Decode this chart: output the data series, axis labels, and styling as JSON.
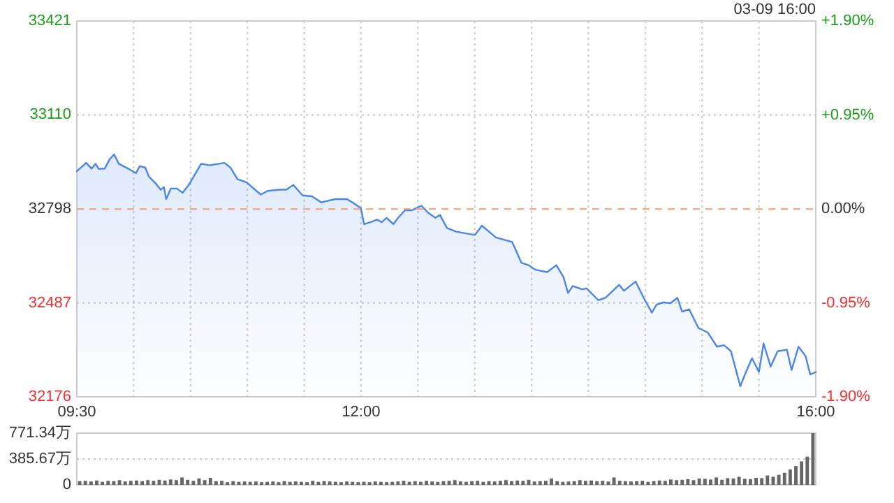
{
  "chart_data": [
    {
      "type": "area",
      "color": "#4a86e8",
      "x": [
        9.5,
        9.582,
        9.631,
        9.664,
        9.692,
        9.746,
        9.787,
        9.828,
        9.869,
        9.951,
        10.02,
        10.053,
        10.102,
        10.135,
        10.196,
        10.237,
        10.266,
        10.286,
        10.327,
        10.381,
        10.43,
        10.483,
        10.594,
        10.667,
        10.798,
        10.852,
        10.913,
        10.995,
        11.056,
        11.118,
        11.179,
        11.282,
        11.343,
        11.404,
        11.486,
        11.568,
        11.65,
        11.773,
        11.876,
        11.937,
        11.998,
        12.027,
        12.08,
        12.142,
        12.183,
        12.224,
        12.285,
        12.326,
        12.387,
        12.449,
        12.531,
        12.592,
        12.654,
        12.695,
        12.756,
        12.838,
        13.002,
        13.063,
        13.186,
        13.329,
        13.411,
        13.473,
        13.534,
        13.637,
        13.718,
        13.78,
        13.821,
        13.862,
        13.944,
        13.985,
        14.087,
        14.149,
        14.271,
        14.312,
        14.415,
        14.497,
        14.558,
        14.599,
        14.661,
        14.722,
        14.783,
        14.824,
        14.886,
        14.968,
        15.05,
        15.131,
        15.193,
        15.254,
        15.336,
        15.377,
        15.439,
        15.5,
        15.541,
        15.603,
        15.664,
        15.746,
        15.787,
        15.848,
        15.91,
        15.951,
        16.0
      ],
      "values": [
        32923,
        32951,
        32932,
        32948,
        32931,
        32932,
        32962,
        32979,
        32948,
        32932,
        32917,
        32940,
        32935,
        32905,
        32882,
        32862,
        32871,
        32831,
        32866,
        32866,
        32852,
        32877,
        32948,
        32943,
        32951,
        32935,
        32897,
        32886,
        32866,
        32846,
        32858,
        32862,
        32862,
        32878,
        32843,
        32840,
        32820,
        32831,
        32831,
        32817,
        32801,
        32748,
        32754,
        32763,
        32754,
        32769,
        32748,
        32769,
        32794,
        32794,
        32809,
        32785,
        32769,
        32778,
        32735,
        32723,
        32712,
        32743,
        32704,
        32689,
        32620,
        32612,
        32597,
        32589,
        32612,
        32573,
        32520,
        32543,
        32532,
        32535,
        32496,
        32504,
        32547,
        32527,
        32558,
        32496,
        32455,
        32481,
        32489,
        32486,
        32504,
        32458,
        32466,
        32404,
        32389,
        32342,
        32347,
        32327,
        32211,
        32250,
        32304,
        32258,
        32353,
        32276,
        32327,
        32332,
        32265,
        32342,
        32311,
        32250,
        32258
      ],
      "xlim": [
        9.5,
        16
      ],
      "xticks": [
        {
          "value": 9.5,
          "label": "09:30"
        },
        {
          "value": 10,
          "label": null
        },
        {
          "value": 10.5,
          "label": null
        },
        {
          "value": 11,
          "label": null
        },
        {
          "value": 11.5,
          "label": null
        },
        {
          "value": 12,
          "label": "12:00"
        },
        {
          "value": 12.5,
          "label": null
        },
        {
          "value": 13,
          "label": null
        },
        {
          "value": 13.5,
          "label": null
        },
        {
          "value": 14,
          "label": null
        },
        {
          "value": 14.5,
          "label": null
        },
        {
          "value": 15,
          "label": null
        },
        {
          "value": 15.5,
          "label": null
        },
        {
          "value": 16,
          "label": "16:00"
        }
      ],
      "ylim": [
        32176,
        33421
      ],
      "yticks": [
        32176,
        32487,
        32798,
        33110,
        33421
      ],
      "y2lim": [
        -1.9,
        1.9
      ],
      "y2ticks": [
        {
          "value": -1.9,
          "label": "-1.90%"
        },
        {
          "value": -0.95,
          "label": "-0.95%"
        },
        {
          "value": 0,
          "label": "0.00%"
        },
        {
          "value": 0.95,
          "label": "+0.95%"
        },
        {
          "value": 1.9,
          "label": "+1.90%"
        }
      ],
      "grid": true,
      "ref_lines": [
        {
          "axis": "y",
          "value": 32798,
          "color": "#f0a070",
          "line_style": "dashed"
        }
      ],
      "annotations": [
        "03-09 16:00"
      ]
    },
    {
      "type": "bar",
      "color": "#666666",
      "categories": [
        null,
        null,
        null,
        null,
        null,
        null,
        null,
        null,
        null,
        null,
        null,
        null,
        null,
        null,
        null,
        null,
        null,
        null,
        null,
        null,
        null,
        null,
        null,
        null,
        null,
        null,
        null,
        null,
        null,
        null,
        null,
        null,
        null,
        null,
        null,
        null,
        null,
        null,
        null,
        null,
        null,
        null,
        null,
        null,
        null,
        null,
        null,
        null,
        null,
        null,
        null,
        null,
        null,
        null,
        null,
        null,
        null,
        null,
        null,
        null,
        null,
        null,
        null,
        null,
        null,
        null,
        null,
        null,
        null,
        null,
        null,
        null,
        null,
        null,
        null,
        null,
        null,
        null,
        null,
        null,
        null,
        null,
        null,
        null,
        null,
        null,
        null,
        null,
        null,
        null,
        null,
        null,
        null,
        null,
        null,
        null,
        null,
        null,
        null,
        null,
        null,
        null,
        null,
        null,
        null,
        null,
        null,
        null,
        null,
        null,
        null,
        null,
        null,
        null,
        null,
        null,
        null,
        null,
        null,
        null,
        null,
        null,
        null,
        null,
        null,
        null,
        null,
        null,
        null,
        null
      ],
      "values": [
        55,
        60,
        50,
        65,
        45,
        60,
        55,
        70,
        50,
        60,
        65,
        55,
        70,
        60,
        75,
        65,
        80,
        70,
        110,
        75,
        60,
        95,
        70,
        105,
        55,
        60,
        40,
        55,
        45,
        50,
        45,
        50,
        40,
        45,
        50,
        40,
        55,
        45,
        50,
        45,
        40,
        60,
        45,
        55,
        50,
        45,
        40,
        50,
        45,
        40,
        45,
        40,
        50,
        45,
        40,
        45,
        50,
        60,
        45,
        55,
        45,
        60,
        50,
        45,
        55,
        60,
        70,
        50,
        45,
        55,
        60,
        45,
        55,
        50,
        60,
        70,
        55,
        65,
        60,
        75,
        50,
        55,
        60,
        95,
        55,
        45,
        50,
        55,
        70,
        60,
        65,
        55,
        60,
        50,
        110,
        60,
        55,
        50,
        55,
        60,
        45,
        55,
        65,
        60,
        80,
        70,
        75,
        85,
        70,
        95,
        90,
        80,
        110,
        75,
        100,
        95,
        120,
        90,
        85,
        105,
        100,
        140,
        120,
        150,
        180,
        230,
        280,
        350,
        420,
        771.34
      ],
      "ylim": [
        0,
        771.34
      ],
      "yticks": [
        0,
        {
          "value": 385.67,
          "label": "385.67万"
        },
        {
          "value": 771.34,
          "label": "771.34万"
        }
      ],
      "grid": "y"
    }
  ]
}
